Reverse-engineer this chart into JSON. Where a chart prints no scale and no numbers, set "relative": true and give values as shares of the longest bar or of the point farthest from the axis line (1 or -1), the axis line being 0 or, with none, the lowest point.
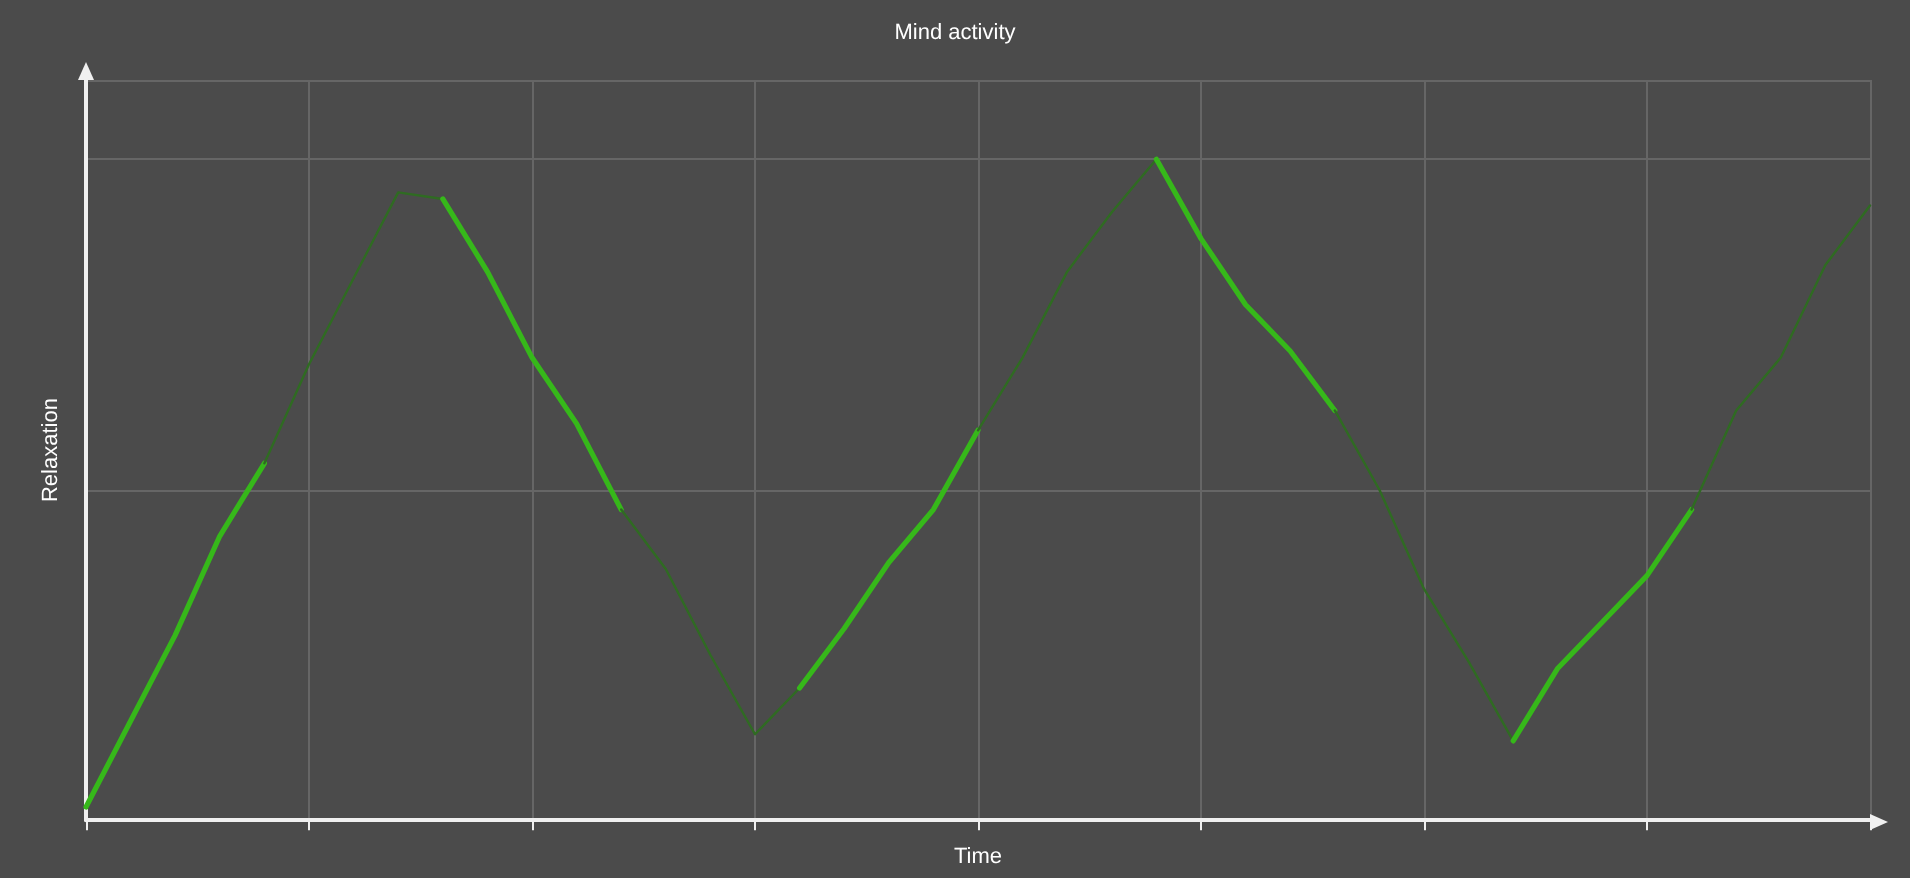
{
  "chart_data": {
    "type": "line",
    "title": "Mind activity",
    "xlabel": "Time",
    "ylabel": "Relaxation",
    "relative": true,
    "grid": true,
    "marker": "none",
    "line_style": "solid",
    "categories": [
      null,
      null,
      null,
      null,
      null,
      null,
      null,
      null,
      null,
      null,
      null,
      null,
      null,
      null,
      null,
      null,
      null,
      null,
      null,
      null,
      null,
      null,
      null,
      null,
      null,
      null,
      null,
      null,
      null,
      null,
      null,
      null,
      null,
      null,
      null,
      null,
      null,
      null,
      null,
      null,
      null
    ],
    "series": [
      {
        "color": "#36b81a",
        "values": [
          0.02,
          0.15,
          0.28,
          0.43,
          0.54,
          null,
          null,
          null,
          null,
          null,
          null,
          null,
          null,
          null,
          null,
          null,
          null,
          null,
          null,
          null,
          null,
          null,
          null,
          null,
          null,
          null,
          null,
          null,
          null,
          null,
          null,
          null,
          null,
          null,
          null,
          null,
          null,
          null,
          null,
          null,
          null
        ]
      },
      {
        "color": "#2f6b22",
        "values": [
          null,
          null,
          null,
          null,
          0.54,
          0.69,
          0.82,
          0.95,
          0.94,
          null,
          null,
          null,
          null,
          null,
          null,
          null,
          null,
          null,
          null,
          null,
          null,
          null,
          null,
          null,
          null,
          null,
          null,
          null,
          null,
          null,
          null,
          null,
          null,
          null,
          null,
          null,
          null,
          null,
          null,
          null,
          null
        ]
      },
      {
        "color": "#36b81a",
        "values": [
          null,
          null,
          null,
          null,
          null,
          null,
          null,
          null,
          0.94,
          0.83,
          0.7,
          0.6,
          0.47,
          null,
          null,
          null,
          null,
          null,
          null,
          null,
          null,
          null,
          null,
          null,
          null,
          null,
          null,
          null,
          null,
          null,
          null,
          null,
          null,
          null,
          null,
          null,
          null,
          null,
          null,
          null,
          null
        ]
      },
      {
        "color": "#2f6b22",
        "values": [
          null,
          null,
          null,
          null,
          null,
          null,
          null,
          null,
          null,
          null,
          null,
          null,
          0.47,
          0.38,
          0.25,
          0.13,
          0.2,
          null,
          null,
          null,
          null,
          null,
          null,
          null,
          null,
          null,
          null,
          null,
          null,
          null,
          null,
          null,
          null,
          null,
          null,
          null,
          null,
          null,
          null,
          null,
          null
        ]
      },
      {
        "color": "#36b81a",
        "values": [
          null,
          null,
          null,
          null,
          null,
          null,
          null,
          null,
          null,
          null,
          null,
          null,
          null,
          null,
          null,
          null,
          0.2,
          0.29,
          0.39,
          0.47,
          0.59,
          null,
          null,
          null,
          null,
          null,
          null,
          null,
          null,
          null,
          null,
          null,
          null,
          null,
          null,
          null,
          null,
          null,
          null,
          null,
          null
        ]
      },
      {
        "color": "#2f6b22",
        "values": [
          null,
          null,
          null,
          null,
          null,
          null,
          null,
          null,
          null,
          null,
          null,
          null,
          null,
          null,
          null,
          null,
          null,
          null,
          null,
          null,
          0.59,
          0.7,
          0.83,
          0.92,
          1,
          null,
          null,
          null,
          null,
          null,
          null,
          null,
          null,
          null,
          null,
          null,
          null,
          null,
          null,
          null,
          null
        ]
      },
      {
        "color": "#36b81a",
        "values": [
          null,
          null,
          null,
          null,
          null,
          null,
          null,
          null,
          null,
          null,
          null,
          null,
          null,
          null,
          null,
          null,
          null,
          null,
          null,
          null,
          null,
          null,
          null,
          null,
          1,
          0.88,
          0.78,
          0.71,
          0.62,
          null,
          null,
          null,
          null,
          null,
          null,
          null,
          null,
          null,
          null,
          null,
          null
        ]
      },
      {
        "color": "#2f6b22",
        "values": [
          null,
          null,
          null,
          null,
          null,
          null,
          null,
          null,
          null,
          null,
          null,
          null,
          null,
          null,
          null,
          null,
          null,
          null,
          null,
          null,
          null,
          null,
          null,
          null,
          null,
          null,
          null,
          null,
          0.62,
          0.5,
          0.35,
          0.24,
          0.12,
          null,
          null,
          null,
          null,
          null,
          null,
          null,
          null
        ]
      },
      {
        "color": "#36b81a",
        "values": [
          null,
          null,
          null,
          null,
          null,
          null,
          null,
          null,
          null,
          null,
          null,
          null,
          null,
          null,
          null,
          null,
          null,
          null,
          null,
          null,
          null,
          null,
          null,
          null,
          null,
          null,
          null,
          null,
          null,
          null,
          null,
          null,
          0.12,
          0.23,
          0.3,
          0.37,
          0.47,
          null,
          null,
          null,
          null
        ]
      },
      {
        "color": "#2f6b22",
        "values": [
          null,
          null,
          null,
          null,
          null,
          null,
          null,
          null,
          null,
          null,
          null,
          null,
          null,
          null,
          null,
          null,
          null,
          null,
          null,
          null,
          null,
          null,
          null,
          null,
          null,
          null,
          null,
          null,
          null,
          null,
          null,
          null,
          null,
          null,
          null,
          null,
          0.47,
          0.62,
          0.7,
          0.84,
          0.93
        ]
      }
    ]
  }
}
